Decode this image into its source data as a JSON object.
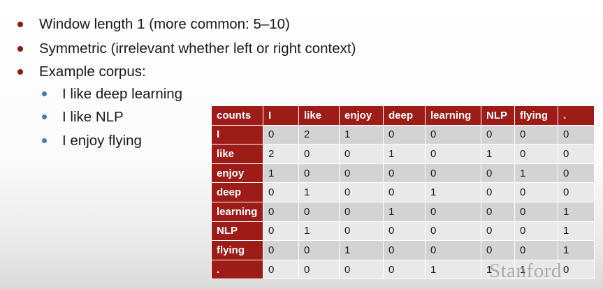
{
  "bullets": {
    "b1": "Window length 1 (more common: 5–10)",
    "b2": "Symmetric (irrelevant whether left or right context)",
    "b3": "Example corpus:",
    "sub": [
      "I like deep learning",
      "I like NLP",
      "I enjoy flying"
    ]
  },
  "table": {
    "header": [
      "counts",
      "I",
      "like",
      "enjoy",
      "deep",
      "learning",
      "NLP",
      "flying",
      "."
    ],
    "rows": [
      {
        "label": "I",
        "values": [
          "0",
          "2",
          "1",
          "0",
          "0",
          "0",
          "0",
          "0"
        ]
      },
      {
        "label": "like",
        "values": [
          "2",
          "0",
          "0",
          "1",
          "0",
          "1",
          "0",
          "0"
        ]
      },
      {
        "label": "enjoy",
        "values": [
          "1",
          "0",
          "0",
          "0",
          "0",
          "0",
          "1",
          "0"
        ]
      },
      {
        "label": "deep",
        "values": [
          "0",
          "1",
          "0",
          "0",
          "1",
          "0",
          "0",
          "0"
        ]
      },
      {
        "label": "learning",
        "values": [
          "0",
          "0",
          "0",
          "1",
          "0",
          "0",
          "0",
          "1"
        ]
      },
      {
        "label": "NLP",
        "values": [
          "0",
          "1",
          "0",
          "0",
          "0",
          "0",
          "0",
          "1"
        ]
      },
      {
        "label": "flying",
        "values": [
          "0",
          "0",
          "1",
          "0",
          "0",
          "0",
          "0",
          "1"
        ]
      },
      {
        "label": ".",
        "values": [
          "0",
          "0",
          "0",
          "0",
          "1",
          "1",
          "1",
          "0"
        ]
      }
    ]
  },
  "watermark": "Stanford",
  "colors": {
    "accent": "#9e1c17",
    "bullet_red": "#8b1a1a",
    "bullet_blue": "#3f7fa8"
  }
}
